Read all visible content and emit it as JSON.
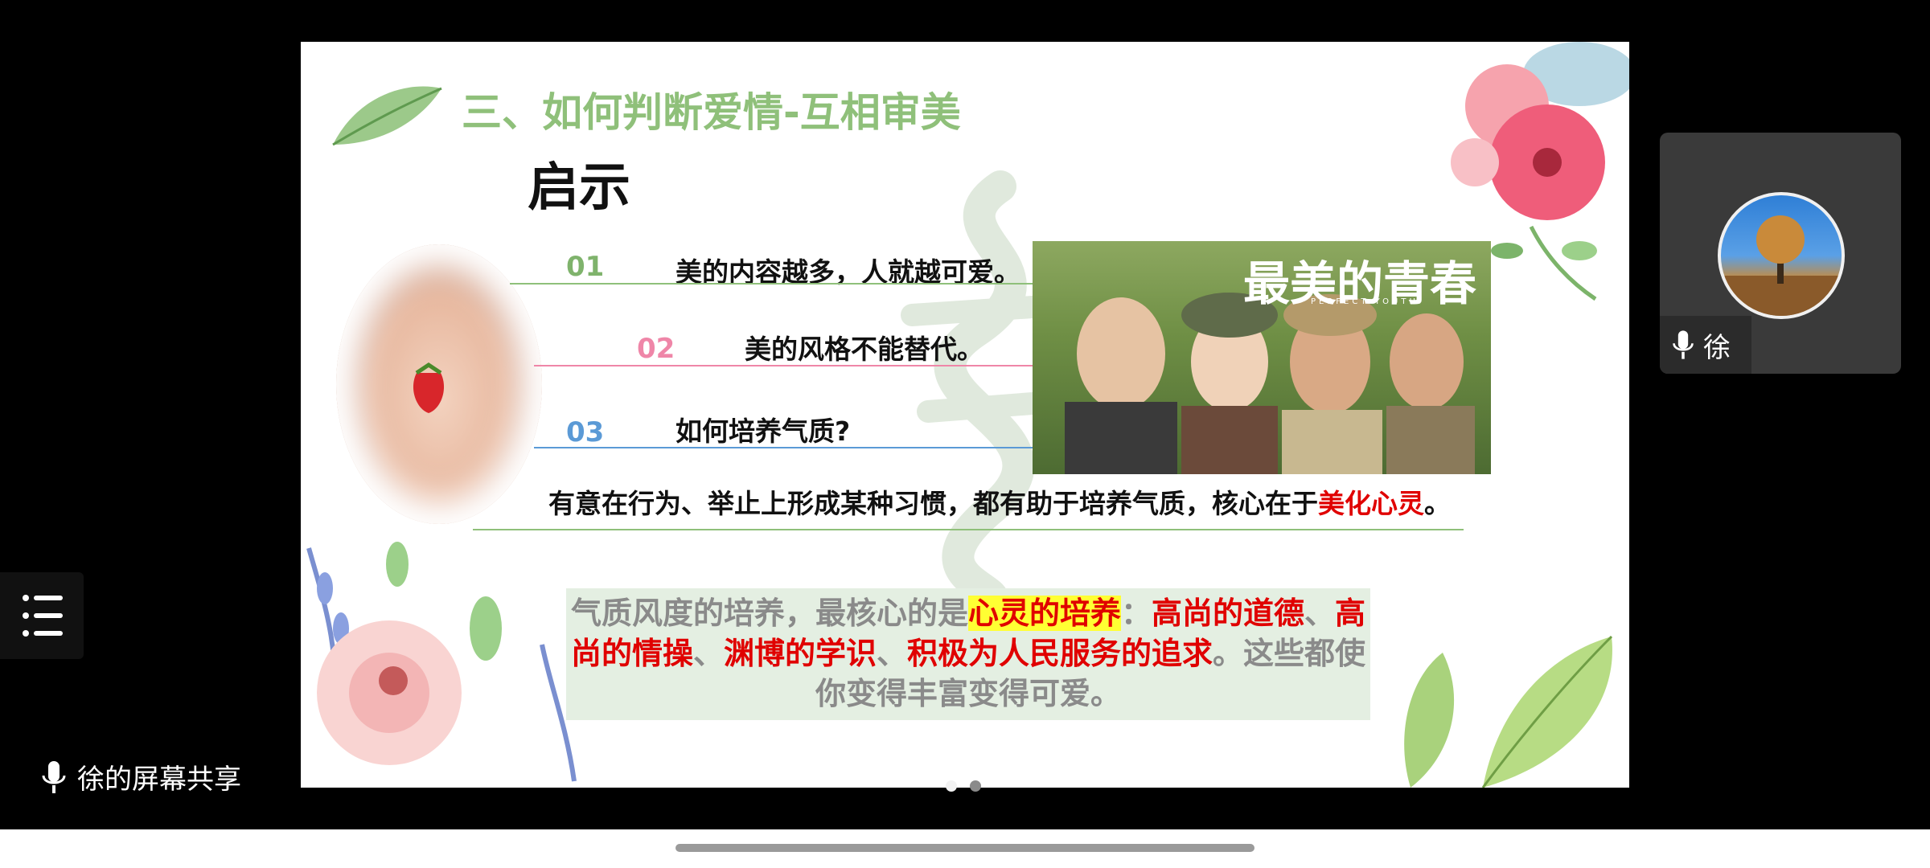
{
  "slide": {
    "title": "三、如何判断爱情-互相审美",
    "heading": "启示",
    "items": [
      {
        "num": "01",
        "text": "美的内容越多，人就越可爱。",
        "color": "#7fb36c"
      },
      {
        "num": "02",
        "text": "美的风格不能替代。",
        "color": "#ef86a8"
      },
      {
        "num": "03",
        "text": "如何培养气质?",
        "color": "#5b9ad6"
      }
    ],
    "poster_title": "最美的青春",
    "poster_subtitle": "PERFECT YOUTH",
    "summary_prefix": "有意在行为、举止上形成某种习惯，都有助于培养气质，核心在于",
    "summary_red": "美化心灵",
    "summary_suffix": "。",
    "quote": {
      "part1": "气质风度的培养，最核心的是",
      "highlight": "心灵的培养",
      "colon": "：",
      "red1": "高尚的道德",
      "sep1": "、",
      "red2": "高尚的情操",
      "sep2": "、",
      "red3": "渊博的学识",
      "sep3": "、",
      "red4": "积极为人民服务的追求",
      "end": "。这些都使你变得丰富变得可爱。"
    }
  },
  "share": {
    "label": "徐的屏幕共享"
  },
  "participant": {
    "name": "徐"
  },
  "colors": {
    "accent_green": "#8fc07a",
    "quote_bg": "#e4efe2",
    "red": "#e00000",
    "highlight": "#ffff33"
  }
}
